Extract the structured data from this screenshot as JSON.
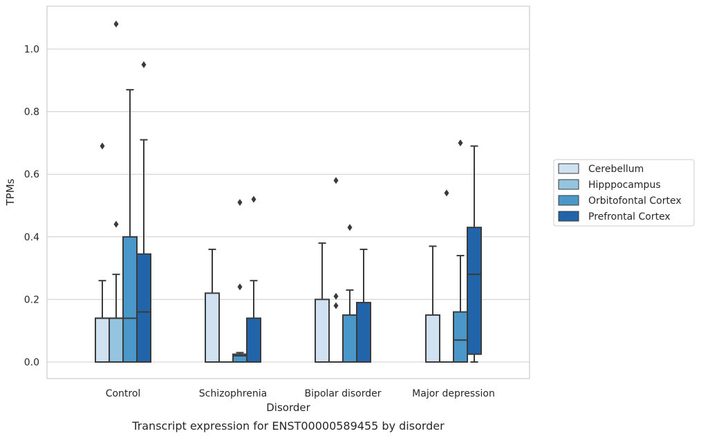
{
  "chart_data": {
    "type": "box",
    "xlabel": "Disorder",
    "ylabel": "TPMs",
    "caption": "Transcript expression for ENST00000589455 by disorder",
    "ylim": [
      -0.05,
      1.14
    ],
    "yticks": [
      "0.0",
      "0.2",
      "0.4",
      "0.6",
      "0.8",
      "1.0"
    ],
    "grid": "horizontal",
    "legend_position": "right",
    "categories": [
      "Control",
      "Schizophrenia",
      "Bipolar disorder",
      "Major depression"
    ],
    "series": [
      {
        "name": "Cerebellum",
        "color": "#d0e1f2",
        "boxes": [
          {
            "q1": 0.0,
            "median": 0.14,
            "q3": 0.14,
            "whisker_low": 0.0,
            "whisker_high": 0.26,
            "outliers": [
              0.69
            ]
          },
          {
            "q1": 0.0,
            "median": 0.0,
            "q3": 0.22,
            "whisker_low": 0.0,
            "whisker_high": 0.36,
            "outliers": []
          },
          {
            "q1": 0.0,
            "median": 0.0,
            "q3": 0.2,
            "whisker_low": 0.0,
            "whisker_high": 0.38,
            "outliers": []
          },
          {
            "q1": 0.0,
            "median": 0.0,
            "q3": 0.15,
            "whisker_low": 0.0,
            "whisker_high": 0.37,
            "outliers": []
          }
        ]
      },
      {
        "name": "Hipppocampus",
        "color": "#94c4df",
        "boxes": [
          {
            "q1": 0.0,
            "median": 0.14,
            "q3": 0.14,
            "whisker_low": 0.0,
            "whisker_high": 0.28,
            "outliers": [
              1.08,
              0.44
            ]
          },
          {
            "q1": 0.0,
            "median": 0.0,
            "q3": 0.0,
            "whisker_low": 0.0,
            "whisker_high": 0.0,
            "outliers": []
          },
          {
            "q1": 0.0,
            "median": 0.0,
            "q3": 0.0,
            "whisker_low": 0.0,
            "whisker_high": 0.0,
            "outliers": [
              0.58,
              0.21,
              0.18
            ]
          },
          {
            "q1": 0.0,
            "median": 0.0,
            "q3": 0.0,
            "whisker_low": 0.0,
            "whisker_high": 0.0,
            "outliers": [
              0.54
            ]
          }
        ]
      },
      {
        "name": "Orbitofontal Cortex",
        "color": "#4a98c9",
        "boxes": [
          {
            "q1": 0.0,
            "median": 0.14,
            "q3": 0.4,
            "whisker_low": 0.0,
            "whisker_high": 0.87,
            "outliers": []
          },
          {
            "q1": 0.0,
            "median": 0.02,
            "q3": 0.025,
            "whisker_low": 0.0,
            "whisker_high": 0.03,
            "outliers": [
              0.51,
              0.24
            ]
          },
          {
            "q1": 0.0,
            "median": 0.0,
            "q3": 0.15,
            "whisker_low": 0.0,
            "whisker_high": 0.23,
            "outliers": [
              0.43
            ]
          },
          {
            "q1": 0.0,
            "median": 0.07,
            "q3": 0.16,
            "whisker_low": 0.0,
            "whisker_high": 0.34,
            "outliers": [
              0.7
            ]
          }
        ]
      },
      {
        "name": "Prefrontal Cortex",
        "color": "#2264aa",
        "boxes": [
          {
            "q1": 0.0,
            "median": 0.16,
            "q3": 0.345,
            "whisker_low": 0.0,
            "whisker_high": 0.71,
            "outliers": [
              0.95
            ]
          },
          {
            "q1": 0.0,
            "median": 0.0,
            "q3": 0.14,
            "whisker_low": 0.0,
            "whisker_high": 0.26,
            "outliers": [
              0.52
            ]
          },
          {
            "q1": 0.0,
            "median": 0.0,
            "q3": 0.19,
            "whisker_low": 0.0,
            "whisker_high": 0.36,
            "outliers": []
          },
          {
            "q1": 0.025,
            "median": 0.28,
            "q3": 0.43,
            "whisker_low": 0.0,
            "whisker_high": 0.69,
            "outliers": []
          }
        ]
      }
    ]
  }
}
